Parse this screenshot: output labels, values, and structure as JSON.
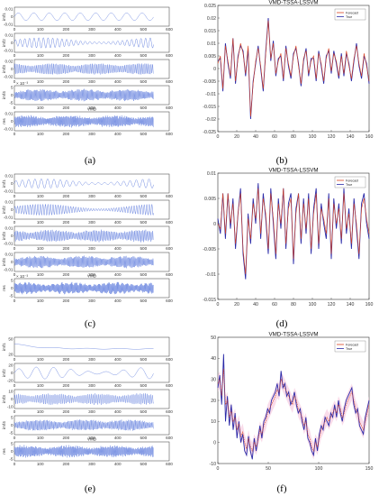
{
  "captions": [
    "(a)",
    "(b)",
    "(c)",
    "(d)",
    "(e)",
    "(f)"
  ],
  "colors": {
    "forecast": "#d9411e",
    "true": "#2a2aa8",
    "imf": "#4a6bd8",
    "band": "#f4c0d8"
  },
  "chart_data": [
    {
      "id": "a",
      "type": "line",
      "xlabel": "VMD",
      "xlim": [
        0,
        600
      ],
      "x_ticks": [
        "0",
        "100",
        "200",
        "300",
        "400",
        "500",
        "600"
      ],
      "panels": [
        {
          "label": "imf1",
          "yticks": [
            "0.01",
            "0",
            "-0.01"
          ],
          "exp": "",
          "pattern": "slow",
          "freq": 9,
          "amp": 0.55
        },
        {
          "label": "imf2",
          "yticks": [
            "0.01",
            "0",
            "-0.01"
          ],
          "exp": "",
          "pattern": "wave",
          "freq": 30,
          "amp": 0.6
        },
        {
          "label": "imf3",
          "yticks": [
            "0.02",
            "0",
            "-0.02"
          ],
          "exp": "",
          "pattern": "dense",
          "freq": 90,
          "amp": 0.75
        },
        {
          "label": "imf4",
          "yticks": [
            "5",
            "0",
            "-5"
          ],
          "exp": "× 10⁻³",
          "pattern": "dense",
          "freq": 140,
          "amp": 0.75
        },
        {
          "label": "res",
          "yticks": [
            "0.01",
            "0",
            "-0.01"
          ],
          "exp": "",
          "pattern": "dense",
          "freq": 160,
          "amp": 0.75
        }
      ]
    },
    {
      "id": "b",
      "type": "line",
      "title": "VMD-TSSA-LSSVM",
      "xlim": [
        0,
        160
      ],
      "ylim": [
        -0.025,
        0.025
      ],
      "x_ticks": [
        "0",
        "20",
        "40",
        "60",
        "80",
        "100",
        "120",
        "140",
        "160"
      ],
      "y_ticks": [
        "0.025",
        "0.02",
        "0.015",
        "0.01",
        "0.005",
        "0",
        "-0.005",
        "-0.01",
        "-0.015",
        "-0.02",
        "-0.025"
      ],
      "legend": [
        "Forecast",
        "True"
      ],
      "series": [
        {
          "name": "Forecast",
          "values": [
            0.002,
            0.005,
            -0.008,
            0.009,
            0.003,
            -0.003,
            0.012,
            -0.005,
            0.004,
            0.01,
            0.006,
            -0.002,
            0.009,
            -0.019,
            -0.006,
            0.003,
            0.008,
            0.001,
            -0.008,
            0.006,
            0.019,
            0.004,
            0.01,
            -0.002,
            0.003,
            0.006,
            -0.004,
            0.008,
            0.002,
            -0.003,
            0.005,
            0.009,
            0.001,
            -0.006,
            0.004,
            0.007,
            -0.002,
            0.003,
            0.005,
            -0.004,
            0.006,
            0.002,
            -0.005,
            0.004,
            0.008,
            -0.001,
            0.006,
            0.003,
            -0.003,
            0.005,
            -0.002,
            0.007,
            0.001,
            -0.004,
            0.004,
            0.009,
            0.002,
            -0.003,
            0.006,
            0.001,
            -0.005
          ]
        },
        {
          "name": "True",
          "values": [
            0.003,
            0.004,
            -0.009,
            0.01,
            0.002,
            -0.004,
            0.012,
            -0.006,
            0.005,
            0.009,
            0.007,
            -0.003,
            0.008,
            -0.02,
            -0.005,
            0.002,
            0.009,
            0.0,
            -0.009,
            0.007,
            0.02,
            0.003,
            0.011,
            -0.003,
            0.004,
            0.005,
            -0.005,
            0.009,
            0.001,
            -0.004,
            0.006,
            0.008,
            0.002,
            -0.007,
            0.003,
            0.008,
            -0.003,
            0.004,
            0.004,
            -0.005,
            0.007,
            0.001,
            -0.006,
            0.005,
            0.007,
            -0.002,
            0.007,
            0.002,
            -0.004,
            0.006,
            -0.003,
            0.006,
            0.002,
            -0.005,
            0.003,
            0.01,
            0.001,
            -0.004,
            0.005,
            0.002,
            -0.006
          ]
        }
      ]
    },
    {
      "id": "c",
      "type": "line",
      "xlabel": "VMD",
      "xlim": [
        0,
        600
      ],
      "x_ticks": [
        "0",
        "100",
        "200",
        "300",
        "400",
        "500",
        "600"
      ],
      "panels": [
        {
          "label": "imf1",
          "yticks": [
            "0.01",
            "0",
            "-0.01"
          ],
          "exp": "",
          "pattern": "wave",
          "freq": 22,
          "amp": 0.55
        },
        {
          "label": "imf2",
          "yticks": [
            "0.01",
            "0",
            "-0.01"
          ],
          "exp": "",
          "pattern": "wave",
          "freq": 55,
          "amp": 0.65
        },
        {
          "label": "imf3",
          "yticks": [
            "0.01",
            "0",
            "-0.01"
          ],
          "exp": "",
          "pattern": "dense",
          "freq": 100,
          "amp": 0.75
        },
        {
          "label": "imf4",
          "yticks": [
            "0.01",
            "0",
            "-0.01"
          ],
          "exp": "",
          "pattern": "dense",
          "freq": 140,
          "amp": 0.75
        },
        {
          "label": "res",
          "yticks": [
            "5",
            "0",
            "-5"
          ],
          "exp": "× 10⁻³",
          "pattern": "dense",
          "freq": 170,
          "amp": 0.75
        }
      ]
    },
    {
      "id": "d",
      "type": "line",
      "title": "VMD-TSSA-LSSVM",
      "xlim": [
        0,
        160
      ],
      "ylim": [
        -0.015,
        0.01
      ],
      "x_ticks": [
        "0",
        "50",
        "100",
        "150"
      ],
      "x_ticks_full": [
        "0",
        "20",
        "40",
        "60",
        "80",
        "100",
        "120",
        "140",
        "160"
      ],
      "y_ticks": [
        "0.01",
        "0.005",
        "0",
        "-0.005",
        "-0.01",
        "-0.015"
      ],
      "legend": [
        "Forecast",
        "True"
      ],
      "series": [
        {
          "name": "Forecast",
          "values": [
            0.0,
            -0.001,
            0.006,
            -0.002,
            0.006,
            0.0,
            0.004,
            -0.004,
            0.002,
            0.006,
            -0.005,
            -0.01,
            0.001,
            -0.003,
            0.004,
            0.001,
            0.007,
            -0.002,
            0.005,
            0.002,
            -0.005,
            0.006,
            0.001,
            -0.006,
            0.004,
            0.0,
            0.007,
            -0.004,
            0.003,
            0.005,
            -0.007,
            0.002,
            0.006,
            -0.003,
            0.004,
            -0.001,
            0.005,
            -0.005,
            0.002,
            0.006,
            -0.004,
            0.003,
            0.001,
            -0.002,
            0.005,
            -0.006,
            0.004,
            0.0,
            0.003,
            -0.003,
            0.006,
            -0.001,
            0.002,
            -0.004,
            0.004,
            0.0,
            -0.006,
            0.003,
            0.005,
            0.001,
            -0.002
          ]
        },
        {
          "name": "True",
          "values": [
            0.001,
            -0.002,
            0.006,
            -0.003,
            0.006,
            -0.001,
            0.005,
            -0.005,
            0.002,
            0.007,
            -0.006,
            -0.011,
            0.002,
            -0.004,
            0.005,
            0.0,
            0.008,
            -0.003,
            0.006,
            0.001,
            -0.006,
            0.007,
            0.0,
            -0.007,
            0.005,
            -0.001,
            0.007,
            -0.005,
            0.004,
            0.006,
            -0.008,
            0.003,
            0.006,
            -0.004,
            0.005,
            -0.002,
            0.006,
            -0.006,
            0.003,
            0.007,
            -0.005,
            0.004,
            0.0,
            -0.003,
            0.006,
            -0.007,
            0.005,
            -0.001,
            0.004,
            -0.004,
            0.007,
            -0.002,
            0.003,
            -0.005,
            0.005,
            -0.001,
            -0.007,
            0.004,
            0.006,
            0.0,
            -0.003
          ]
        }
      ]
    },
    {
      "id": "e",
      "type": "line",
      "xlabel": "VMD",
      "xlim": [
        0,
        600
      ],
      "x_ticks": [
        "0",
        "100",
        "200",
        "300",
        "400",
        "500",
        "600"
      ],
      "panels": [
        {
          "label": "imf1",
          "yticks": [
            "50",
            "20"
          ],
          "exp": "",
          "pattern": "trend",
          "freq": 0,
          "amp": 0.5
        },
        {
          "label": "imf2",
          "yticks": [
            "20",
            "0",
            "-20"
          ],
          "exp": "",
          "pattern": "wave",
          "freq": 8,
          "amp": 0.7
        },
        {
          "label": "imf3",
          "yticks": [
            "10",
            "0",
            "-10"
          ],
          "exp": "",
          "pattern": "dense",
          "freq": 80,
          "amp": 0.7
        },
        {
          "label": "imf4",
          "yticks": [
            "5",
            "0",
            "-5"
          ],
          "exp": "",
          "pattern": "dense",
          "freq": 120,
          "amp": 0.7
        },
        {
          "label": "res",
          "yticks": [
            "5",
            "0",
            "-5"
          ],
          "exp": "",
          "pattern": "dense",
          "freq": 160,
          "amp": 0.75
        }
      ]
    },
    {
      "id": "f",
      "type": "line",
      "title": "VMD-TSSA-LSSVM",
      "xlim": [
        0,
        150
      ],
      "ylim": [
        -10,
        50
      ],
      "x_ticks": [
        "0",
        "50",
        "100",
        "150"
      ],
      "y_ticks": [
        "50",
        "40",
        "30",
        "20",
        "10",
        "0",
        "-10"
      ],
      "legend": [
        "Forecast",
        "True"
      ],
      "series": [
        {
          "name": "Forecast",
          "values": [
            28,
            30,
            22,
            35,
            18,
            20,
            12,
            15,
            10,
            12,
            6,
            9,
            3,
            5,
            0,
            -3,
            2,
            -2,
            -4,
            0,
            -2,
            1,
            6,
            4,
            8,
            10,
            14,
            16,
            18,
            20,
            22,
            25,
            24,
            30,
            28,
            26,
            24,
            22,
            20,
            18,
            22,
            20,
            16,
            14,
            12,
            8,
            10,
            4,
            2,
            -2,
            -4,
            0,
            -2,
            2,
            6,
            8,
            10,
            12,
            10,
            12,
            14,
            16,
            14,
            18,
            16,
            12,
            14,
            18,
            20,
            22,
            24,
            20,
            16,
            14,
            10,
            8,
            6,
            10,
            14,
            18
          ]
        },
        {
          "name": "True",
          "values": [
            26,
            32,
            18,
            42,
            10,
            22,
            8,
            18,
            6,
            14,
            2,
            10,
            0,
            4,
            -4,
            -6,
            3,
            -4,
            -8,
            2,
            -4,
            2,
            8,
            2,
            10,
            12,
            16,
            14,
            20,
            22,
            24,
            28,
            22,
            34,
            26,
            28,
            22,
            24,
            18,
            20,
            24,
            18,
            14,
            16,
            10,
            6,
            12,
            2,
            0,
            -4,
            -6,
            2,
            -4,
            4,
            8,
            6,
            12,
            10,
            8,
            14,
            12,
            18,
            12,
            20,
            14,
            10,
            16,
            20,
            22,
            24,
            26,
            18,
            14,
            16,
            8,
            6,
            4,
            12,
            16,
            20
          ]
        }
      ]
    }
  ]
}
